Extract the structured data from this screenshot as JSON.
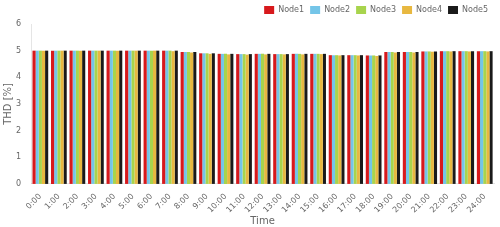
{
  "chart_data": {
    "type": "bar",
    "xlabel": "Time",
    "ylabel": "THD [%]",
    "categories": [
      "0:00",
      "1:00",
      "2:00",
      "3:00",
      "4:00",
      "5:00",
      "6:00",
      "7:00",
      "8:00",
      "9:00",
      "10:00",
      "11:00",
      "12:00",
      "13:00",
      "14:00",
      "15:00",
      "16:00",
      "17:00",
      "18:00",
      "19:00",
      "20:00",
      "21:00",
      "22:00",
      "23:00",
      "24:00"
    ],
    "series": [
      {
        "name": "Node1",
        "color": "#d7191c",
        "values": [
          5.0,
          5.0,
          5.0,
          5.0,
          5.0,
          5.0,
          5.0,
          5.0,
          4.95,
          4.9,
          4.88,
          4.87,
          4.88,
          4.87,
          4.88,
          4.88,
          4.83,
          4.83,
          4.82,
          4.95,
          4.95,
          4.97,
          4.98,
          4.98,
          4.98
        ]
      },
      {
        "name": "Node2",
        "color": "#74c5e8",
        "values": [
          5.0,
          5.0,
          5.0,
          5.0,
          5.0,
          5.0,
          5.0,
          5.0,
          4.95,
          4.9,
          4.88,
          4.87,
          4.88,
          4.87,
          4.88,
          4.88,
          4.83,
          4.83,
          4.82,
          4.95,
          4.95,
          4.97,
          4.98,
          4.98,
          4.98
        ]
      },
      {
        "name": "Node3",
        "color": "#a8d44d",
        "values": [
          5.0,
          5.0,
          5.0,
          5.0,
          5.0,
          5.0,
          5.0,
          5.0,
          4.95,
          4.9,
          4.88,
          4.87,
          4.88,
          4.87,
          4.88,
          4.88,
          4.83,
          4.83,
          4.82,
          4.95,
          4.95,
          4.97,
          4.98,
          4.98,
          4.98
        ]
      },
      {
        "name": "Node4",
        "color": "#e8b840",
        "values": [
          5.0,
          5.0,
          5.0,
          5.0,
          5.0,
          5.0,
          5.0,
          4.98,
          4.93,
          4.88,
          4.86,
          4.85,
          4.86,
          4.86,
          4.86,
          4.87,
          4.82,
          4.82,
          4.8,
          4.93,
          4.93,
          4.96,
          4.97,
          4.97,
          4.97
        ]
      },
      {
        "name": "Node5",
        "color": "#1a1a1a",
        "values": [
          5.0,
          5.0,
          5.0,
          5.0,
          5.0,
          5.0,
          5.0,
          5.0,
          4.95,
          4.9,
          4.88,
          4.87,
          4.88,
          4.87,
          4.88,
          4.88,
          4.83,
          4.83,
          4.82,
          4.95,
          4.95,
          4.97,
          4.98,
          4.98,
          4.98
        ]
      }
    ],
    "ylim": [
      0,
      6
    ],
    "yticks": [
      0,
      1,
      2,
      3,
      4,
      5,
      6
    ],
    "grid": false,
    "legend": "upper right"
  }
}
